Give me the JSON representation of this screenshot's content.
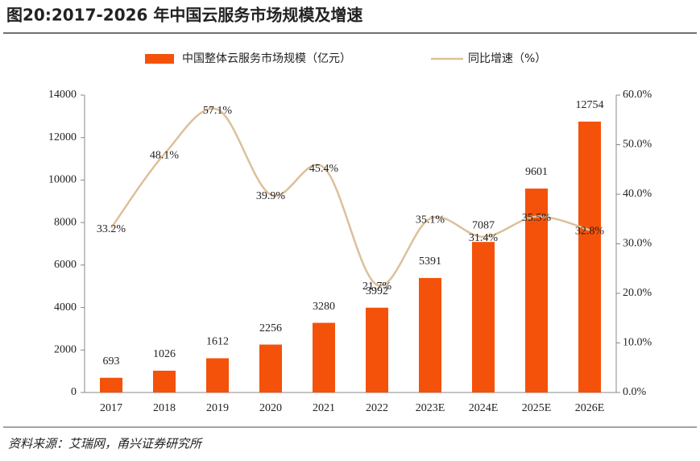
{
  "chart_data": {
    "type": "bar",
    "title": "图20:2017-2026 年中国云服务市场规模及增速",
    "source": "资料来源：艾瑞网，甬兴证券研究所",
    "categories": [
      "2017",
      "2018",
      "2019",
      "2020",
      "2021",
      "2022",
      "2023E",
      "2024E",
      "2025E",
      "2026E"
    ],
    "series": [
      {
        "name": "中国整体云服务市场规模（亿元）",
        "type": "bar",
        "color": "#f4520a",
        "values": [
          693,
          1026,
          1612,
          2256,
          3280,
          3992,
          5391,
          7087,
          9601,
          12754
        ]
      },
      {
        "name": "同比增速（%）",
        "type": "line",
        "axis": "y2",
        "color": "#dcc09a",
        "values": [
          33.2,
          48.1,
          57.1,
          39.9,
          45.4,
          21.7,
          35.1,
          31.4,
          35.5,
          32.8
        ],
        "value_labels": [
          "33.2%",
          "48.1%",
          "57.1%",
          "39.9%",
          "45.4%",
          "21.7%",
          "35.1%",
          "31.4%",
          "35.5%",
          "32.8%"
        ]
      }
    ],
    "ylim": [
      0,
      14000
    ],
    "yticks": [
      0,
      2000,
      4000,
      6000,
      8000,
      10000,
      12000,
      14000
    ],
    "y2lim": [
      0,
      60
    ],
    "y2ticks": [
      {
        "value": 0,
        "label": "0.0%"
      },
      {
        "value": 10,
        "label": "10.0%"
      },
      {
        "value": 20,
        "label": "20.0%"
      },
      {
        "value": 30,
        "label": "30.0%"
      },
      {
        "value": 40,
        "label": "40.0%"
      },
      {
        "value": 50,
        "label": "50.0%"
      },
      {
        "value": 60,
        "label": "60.0%"
      }
    ],
    "legend": "top",
    "grid": false
  }
}
